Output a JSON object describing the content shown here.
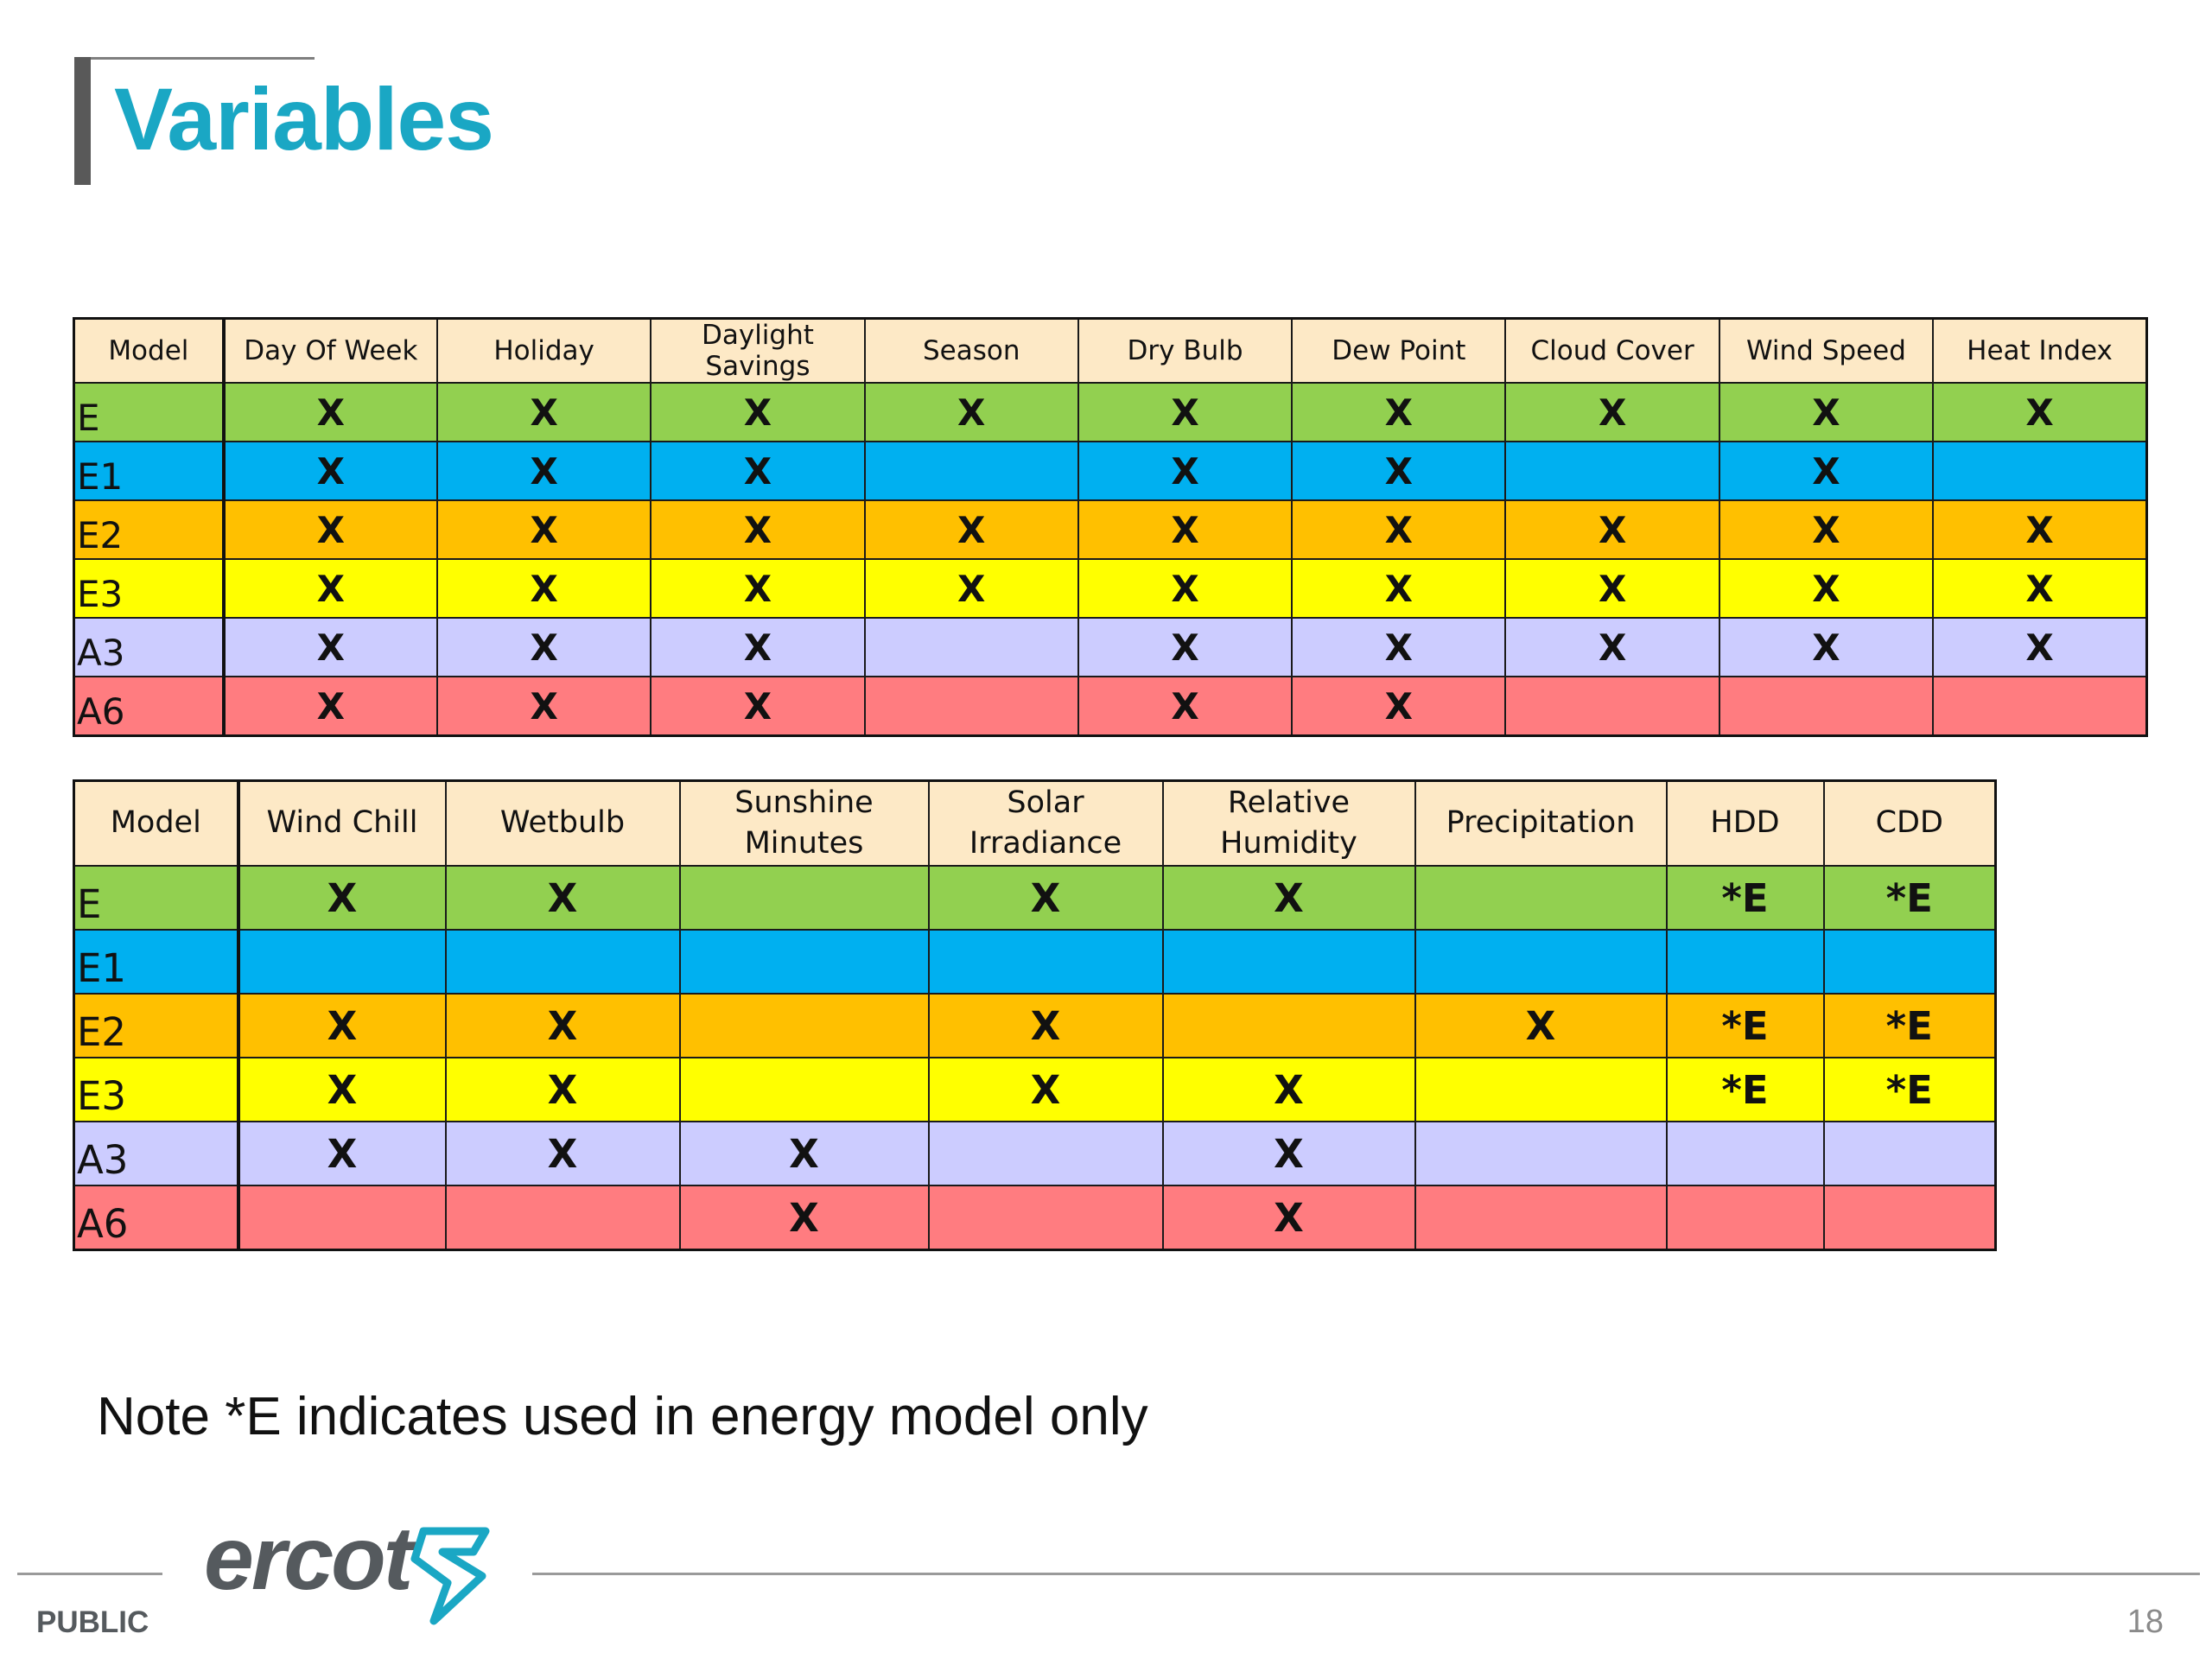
{
  "slide": {
    "title": "Variables",
    "note": "Note *E indicates used in energy model only",
    "footer_label": "PUBLIC",
    "page_number": "18",
    "logo_text": "ercot",
    "title_color": "#1aa7c4"
  },
  "row_colors": {
    "E": "#92d050",
    "E1": "#00b0f0",
    "E2": "#ffc000",
    "E3": "#ffff00",
    "A3": "#ccccff",
    "A6": "#ff7c80"
  },
  "table1": {
    "headers": [
      "Model",
      "Day Of Week",
      "Holiday",
      "Daylight Savings",
      "Season",
      "Dry Bulb",
      "Dew Point",
      "Cloud Cover",
      "Wind Speed",
      "Heat Index"
    ],
    "rows": [
      {
        "model": "E",
        "cells": [
          "X",
          "X",
          "X",
          "X",
          "X",
          "X",
          "X",
          "X",
          "X"
        ]
      },
      {
        "model": "E1",
        "cells": [
          "X",
          "X",
          "X",
          "",
          "X",
          "X",
          "",
          "X",
          ""
        ]
      },
      {
        "model": "E2",
        "cells": [
          "X",
          "X",
          "X",
          "X",
          "X",
          "X",
          "X",
          "X",
          "X"
        ]
      },
      {
        "model": "E3",
        "cells": [
          "X",
          "X",
          "X",
          "X",
          "X",
          "X",
          "X",
          "X",
          "X"
        ]
      },
      {
        "model": "A3",
        "cells": [
          "X",
          "X",
          "X",
          "",
          "X",
          "X",
          "X",
          "X",
          "X"
        ]
      },
      {
        "model": "A6",
        "cells": [
          "X",
          "X",
          "X",
          "",
          "X",
          "X",
          "",
          "",
          ""
        ]
      }
    ]
  },
  "table2": {
    "headers": [
      "Model",
      "Wind Chill",
      "Wetbulb",
      "Sunshine Minutes",
      "Solar Irradiance",
      "Relative Humidity",
      "Precipitation",
      "HDD",
      "CDD"
    ],
    "rows": [
      {
        "model": "E",
        "cells": [
          "X",
          "X",
          "",
          "X",
          "X",
          "",
          "*E",
          "*E"
        ]
      },
      {
        "model": "E1",
        "cells": [
          "",
          "",
          "",
          "",
          "",
          "",
          "",
          ""
        ]
      },
      {
        "model": "E2",
        "cells": [
          "X",
          "X",
          "",
          "X",
          "",
          "X",
          "*E",
          "*E"
        ]
      },
      {
        "model": "E3",
        "cells": [
          "X",
          "X",
          "",
          "X",
          "X",
          "",
          "*E",
          "*E"
        ]
      },
      {
        "model": "A3",
        "cells": [
          "X",
          "X",
          "X",
          "",
          "X",
          "",
          "",
          ""
        ]
      },
      {
        "model": "A6",
        "cells": [
          "",
          "",
          "X",
          "",
          "X",
          "",
          "",
          ""
        ]
      }
    ]
  }
}
